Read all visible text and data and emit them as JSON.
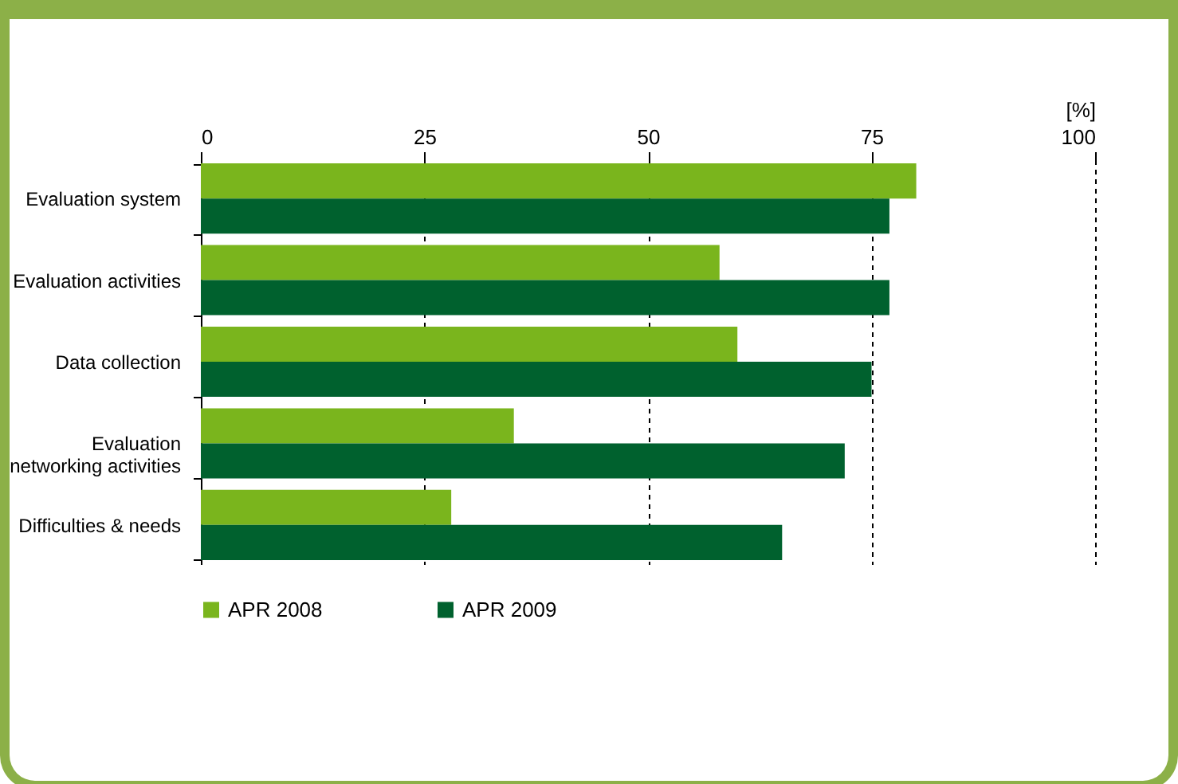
{
  "chart_data": {
    "type": "bar",
    "orientation": "horizontal",
    "xlabel": "[%]",
    "categories": [
      "Evaluation system",
      "Evaluation activities",
      "Data collection",
      "Evaluation networking activities",
      "Difficulties & needs"
    ],
    "series": [
      {
        "name": "APR 2008",
        "color": "#7ab51d",
        "values": [
          80,
          58,
          60,
          35,
          28
        ]
      },
      {
        "name": "APR 2009",
        "color": "#00612e",
        "values": [
          77,
          77,
          75,
          72,
          65
        ]
      }
    ],
    "xlim": [
      0,
      100
    ],
    "xticks": [
      0,
      25,
      50,
      75,
      100
    ],
    "grid": "x",
    "legend": "bottom"
  }
}
